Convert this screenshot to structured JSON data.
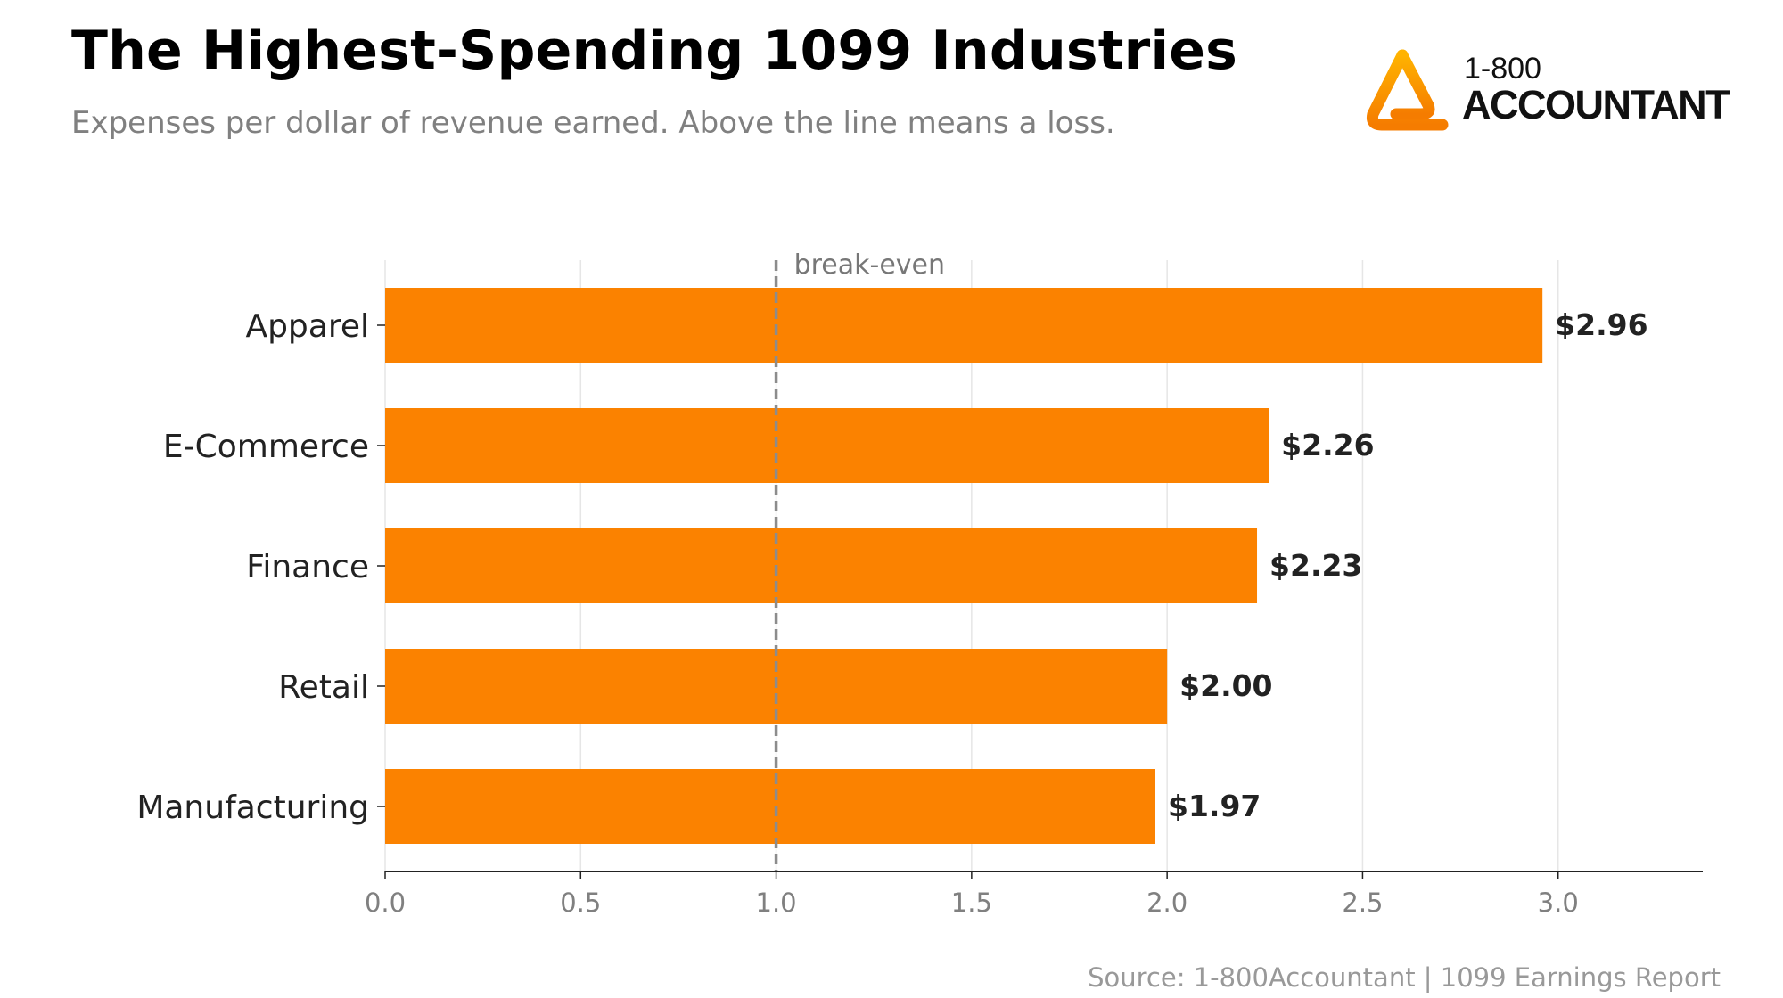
{
  "header": {
    "title": "The Highest-Spending 1099 Industries",
    "subtitle": "Expenses per dollar of revenue earned. Above the line means a loss."
  },
  "logo": {
    "icon": "triangle-a-logo-icon",
    "line1": "1-800",
    "line2": "ACCOUNTANT",
    "gradient": [
      "#FFB300",
      "#F57C00"
    ]
  },
  "footer": {
    "source": "Source: 1-800Accountant  |  1099 Earnings Report"
  },
  "colors": {
    "bar": "#FB8200",
    "grid": "#e6e6e6",
    "axis": "#222222",
    "tick_text": "#808080",
    "category_text": "#222222",
    "reference_line": "#8c8c8c"
  },
  "chart_data": {
    "type": "bar",
    "orientation": "horizontal",
    "categories": [
      "Apparel",
      "E-Commerce",
      "Finance",
      "Retail",
      "Manufacturing"
    ],
    "values": [
      2.96,
      2.26,
      2.23,
      2.0,
      1.97
    ],
    "data_labels": [
      "$2.96",
      "$2.26",
      "$2.23",
      "$2.00",
      "$1.97"
    ],
    "xlim": [
      0,
      3.37
    ],
    "xticks": [
      0.0,
      0.5,
      1.0,
      1.5,
      2.0,
      2.5,
      3.0
    ],
    "xtick_labels": [
      "0.0",
      "0.5",
      "1.0",
      "1.5",
      "2.0",
      "2.5",
      "3.0"
    ],
    "grid": "vertical",
    "reference_line": {
      "value": 1.0,
      "label": "break-even",
      "style": "dashed"
    }
  }
}
